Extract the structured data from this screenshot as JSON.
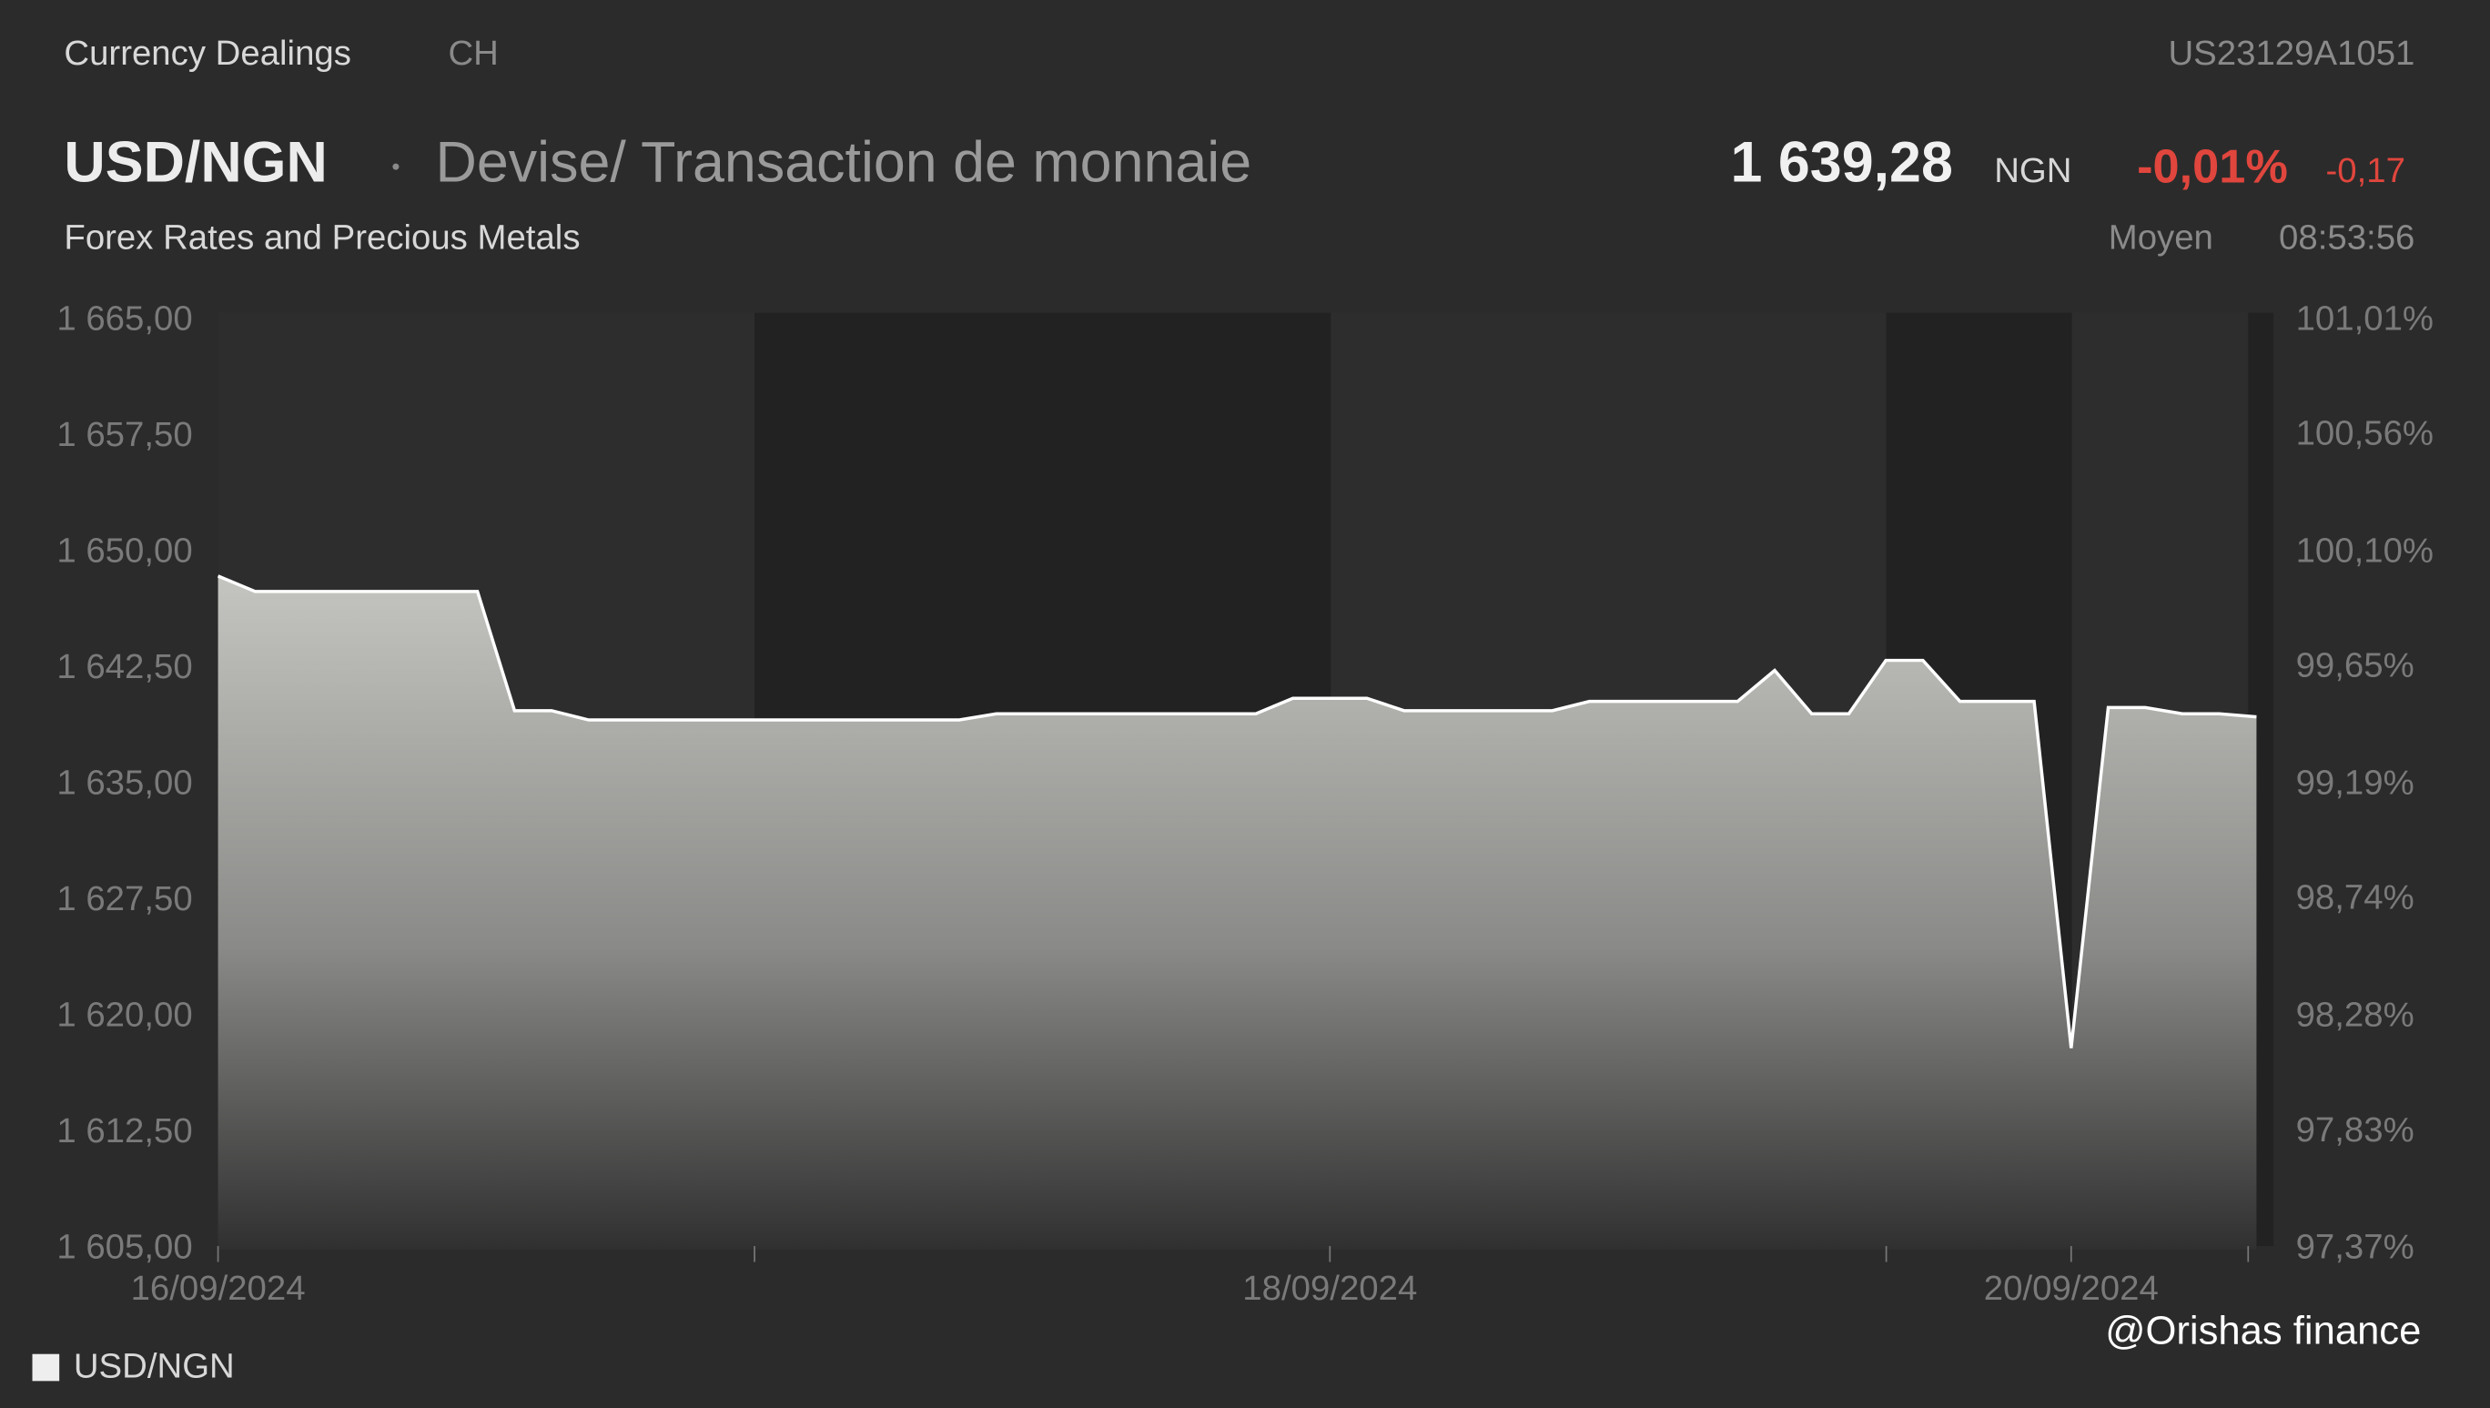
{
  "header": {
    "section": "Currency Dealings",
    "country": "CH",
    "isin": "US23129A1051",
    "symbol": "USD/NGN",
    "description": "Devise/ Transaction de monnaie",
    "subtitle": "Forex Rates and Precious Metals",
    "price": "1 639,28",
    "currency": "NGN",
    "change_pct": "-0,01%",
    "change_abs": "-0,17",
    "price_type": "Moyen",
    "time": "08:53:56"
  },
  "watermark": "@Orishas finance",
  "chart_data": {
    "type": "area",
    "categories": [
      "16/09/2024",
      null,
      null,
      null,
      null,
      null,
      null,
      null,
      null,
      null,
      null,
      null,
      null,
      null,
      null,
      null,
      null,
      null,
      null,
      null,
      null,
      null,
      null,
      null,
      null,
      null,
      null,
      null,
      null,
      null,
      "18/09/2024",
      null,
      null,
      null,
      null,
      null,
      null,
      null,
      null,
      null,
      null,
      null,
      null,
      null,
      null,
      null,
      null,
      null,
      null,
      null,
      "20/09/2024",
      null,
      null,
      null,
      null,
      null
    ],
    "series": [
      {
        "name": "USD/NGN",
        "color": "#ffffff",
        "values": [
          1648.5,
          1647.5,
          1647.5,
          1647.5,
          1647.5,
          1647.5,
          1647.5,
          1647.5,
          1639.8,
          1639.8,
          1639.2,
          1639.2,
          1639.2,
          1639.2,
          1639.2,
          1639.2,
          1639.2,
          1639.2,
          1639.2,
          1639.2,
          1639.2,
          1639.6,
          1639.6,
          1639.6,
          1639.6,
          1639.6,
          1639.6,
          1639.6,
          1639.6,
          1640.6,
          1640.6,
          1640.6,
          1639.8,
          1639.8,
          1639.8,
          1639.8,
          1639.8,
          1640.4,
          1640.4,
          1640.4,
          1640.4,
          1640.4,
          1642.4,
          1639.6,
          1639.6,
          1643.05,
          1643.05,
          1640.4,
          1640.4,
          1640.4,
          1618.0,
          1640.0,
          1640.0,
          1639.6,
          1639.6,
          1639.4
        ]
      }
    ],
    "ylim": [
      1605,
      1665
    ],
    "yticks": [
      {
        "value": 1605,
        "label": "1 605,00"
      },
      {
        "value": 1612.5,
        "label": "1 612,50"
      },
      {
        "value": 1620,
        "label": "1 620,00"
      },
      {
        "value": 1627.5,
        "label": "1 627,50"
      },
      {
        "value": 1635,
        "label": "1 635,00"
      },
      {
        "value": 1642.5,
        "label": "1 642,50"
      },
      {
        "value": 1650,
        "label": "1 650,00"
      },
      {
        "value": 1657.5,
        "label": "1 657,50"
      },
      {
        "value": 1665,
        "label": "1 665,00"
      }
    ],
    "y2lim": [
      97.37,
      101.01
    ],
    "y2ticks": [
      {
        "value": 97.37,
        "label": "97,37%"
      },
      {
        "value": 97.83,
        "label": "97,83%"
      },
      {
        "value": 98.28,
        "label": "98,28%"
      },
      {
        "value": 98.74,
        "label": "98,74%"
      },
      {
        "value": 99.19,
        "label": "99,19%"
      },
      {
        "value": 99.65,
        "label": "99,65%"
      },
      {
        "value": 100.1,
        "label": "100,10%"
      },
      {
        "value": 100.56,
        "label": "100,56%"
      },
      {
        "value": 101.01,
        "label": "101,01%"
      }
    ]
  }
}
